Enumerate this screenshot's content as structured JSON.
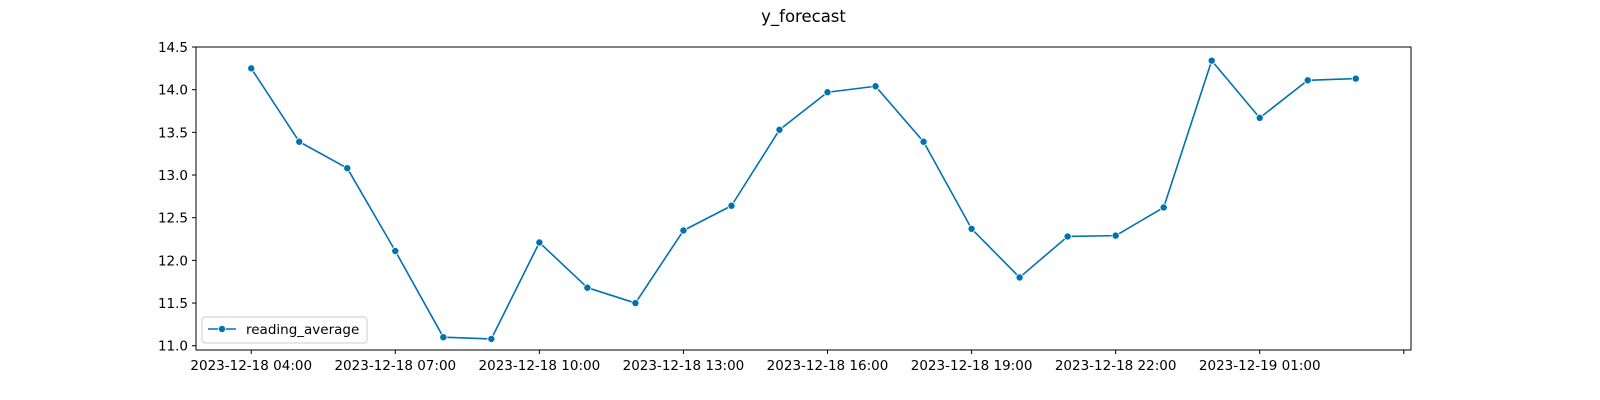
{
  "chart_data": {
    "type": "line",
    "title": "y_forecast",
    "xlabel": "",
    "ylabel": "",
    "x": [
      "2023-12-18 04:00",
      "2023-12-18 05:00",
      "2023-12-18 06:00",
      "2023-12-18 07:00",
      "2023-12-18 08:00",
      "2023-12-18 09:00",
      "2023-12-18 10:00",
      "2023-12-18 11:00",
      "2023-12-18 12:00",
      "2023-12-18 13:00",
      "2023-12-18 14:00",
      "2023-12-18 15:00",
      "2023-12-18 16:00",
      "2023-12-18 17:00",
      "2023-12-18 18:00",
      "2023-12-18 19:00",
      "2023-12-18 20:00",
      "2023-12-18 21:00",
      "2023-12-18 22:00",
      "2023-12-18 23:00",
      "2023-12-19 00:00",
      "2023-12-19 01:00",
      "2023-12-19 02:00",
      "2023-12-19 03:00"
    ],
    "series": [
      {
        "name": "reading_average",
        "color": "#0072b2",
        "marker": "circle",
        "values": [
          14.25,
          13.39,
          13.08,
          12.11,
          11.1,
          11.08,
          12.21,
          11.68,
          11.5,
          12.35,
          12.64,
          13.53,
          13.97,
          14.04,
          13.39,
          12.37,
          11.8,
          12.28,
          12.29,
          12.62,
          14.34,
          13.67,
          14.11,
          14.13
        ]
      }
    ],
    "x_ticks": [
      "2023-12-18 04:00",
      "2023-12-18 07:00",
      "2023-12-18 10:00",
      "2023-12-18 13:00",
      "2023-12-18 16:00",
      "2023-12-18 19:00",
      "2023-12-18 22:00",
      "2023-12-19 01:00",
      ""
    ],
    "x_range": [
      "2023-12-18 02:51",
      "2023-12-19 04:09"
    ],
    "y_ticks": [
      "11.0",
      "11.5",
      "12.0",
      "12.5",
      "13.0",
      "13.5",
      "14.0",
      "14.5"
    ],
    "ylim": [
      10.95,
      14.5
    ],
    "grid": false,
    "legend": {
      "placement": "lower-left"
    }
  }
}
